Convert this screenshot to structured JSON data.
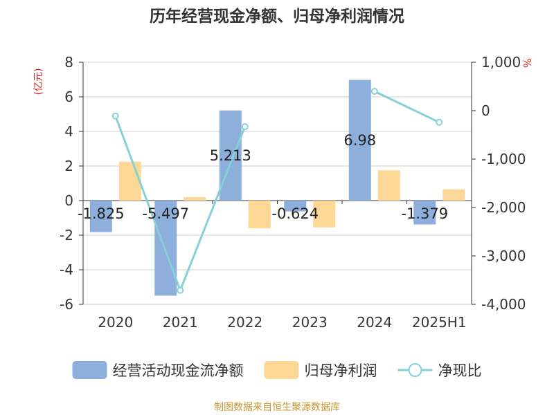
{
  "chart_data": {
    "type": "bar",
    "title": "历年经营现金净额、归母净利润情况",
    "left_unit": "(亿元)",
    "right_unit": "%",
    "categories": [
      "2020",
      "2021",
      "2022",
      "2023",
      "2024",
      "2025H1"
    ],
    "series": [
      {
        "name": "经营活动现金流净额",
        "type": "bar",
        "axis": "left",
        "color": "#8eaedc",
        "values": [
          -1.825,
          -5.497,
          5.213,
          -0.624,
          6.98,
          -1.379
        ],
        "labels": [
          "-1.825",
          "-5.497",
          "5.213",
          "-0.624",
          "6.98",
          "-1.379"
        ]
      },
      {
        "name": "归母净利润",
        "type": "bar",
        "axis": "left",
        "color": "#fdd795",
        "values": [
          2.25,
          0.2,
          -1.6,
          -1.55,
          1.75,
          0.65
        ]
      },
      {
        "name": "净现比",
        "type": "line",
        "axis": "right",
        "color": "#86d0d7",
        "values": [
          -110,
          -3710,
          -330,
          null,
          400,
          -240
        ]
      }
    ],
    "left_axis": {
      "min": -6,
      "max": 8,
      "step": 2,
      "tick_labels": [
        "-6",
        "-4",
        "-2",
        "0",
        "2",
        "4",
        "6",
        "8"
      ]
    },
    "right_axis": {
      "min": -4000,
      "max": 1000,
      "step": 1000,
      "tick_labels": [
        "-4,000",
        "-3,000",
        "-2,000",
        "-1,000",
        "0",
        "1,000"
      ]
    },
    "grid": true,
    "legend_position": "bottom",
    "source": "制图数据来自恒生聚源数据库"
  }
}
